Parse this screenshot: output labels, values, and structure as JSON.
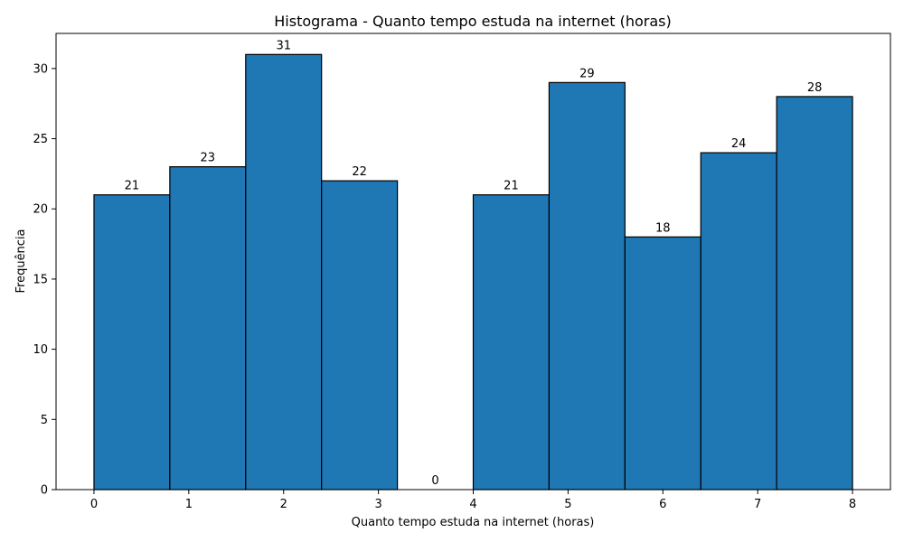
{
  "chart_data": {
    "type": "bar",
    "title": "Histograma - Quanto tempo estuda na internet (horas)",
    "xlabel": "Quanto tempo estuda na internet (horas)",
    "ylabel": "Frequência",
    "xlim": [
      -0.4,
      8.4
    ],
    "ylim": [
      0,
      32.5
    ],
    "bin_edges": [
      0,
      0.8,
      1.6,
      2.4,
      3.2,
      4.0,
      4.8,
      5.6,
      6.4,
      7.2,
      8.0
    ],
    "values": [
      21,
      23,
      31,
      22,
      0,
      21,
      29,
      18,
      24,
      28
    ],
    "data_labels": [
      "21",
      "23",
      "31",
      "22",
      "0",
      "21",
      "29",
      "18",
      "24",
      "28"
    ],
    "x_ticks": [
      0,
      1,
      2,
      3,
      4,
      5,
      6,
      7,
      8
    ],
    "x_tick_labels": [
      "0",
      "1",
      "2",
      "3",
      "4",
      "5",
      "6",
      "7",
      "8"
    ],
    "y_ticks": [
      0,
      5,
      10,
      15,
      20,
      25,
      30
    ],
    "y_tick_labels": [
      "0",
      "5",
      "10",
      "15",
      "20",
      "25",
      "30"
    ],
    "grid": false,
    "colors": {
      "bar": "#1f77b4",
      "edge": "#000000"
    }
  }
}
